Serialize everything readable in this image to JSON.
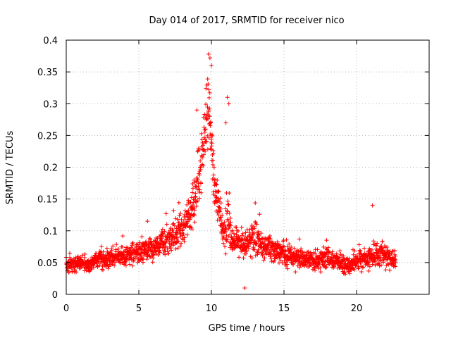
{
  "chart_data": {
    "type": "scatter",
    "title": "Day 014 of 2017, SRMTID for receiver nico",
    "xlabel": "GPS time / hours",
    "ylabel": "SRMTID / TECUs",
    "xlim": [
      0,
      25
    ],
    "ylim": [
      0,
      0.4
    ],
    "x_ticks": [
      0,
      5,
      10,
      15,
      20
    ],
    "x_tick_labels": [
      "0",
      "5",
      "10",
      "15",
      "20"
    ],
    "y_ticks": [
      0,
      0.05,
      0.1,
      0.15,
      0.2,
      0.25,
      0.3,
      0.35,
      0.4
    ],
    "y_tick_labels": [
      "0",
      "0.05",
      "0.1",
      "0.15",
      "0.2",
      "0.25",
      "0.3",
      "0.35",
      "0.4"
    ],
    "grid": true,
    "marker": "+",
    "color": "#ff0000",
    "series": [
      {
        "name": "SRMTID",
        "note_profile": "Envelope of the plotted cloud (approximate central value / max spread) used to regenerate the dense point cloud",
        "x": [
          0,
          0.5,
          1,
          1.5,
          2,
          2.5,
          3,
          3.5,
          4,
          4.5,
          5,
          5.5,
          6,
          6.5,
          7,
          7.5,
          8,
          8.3,
          8.6,
          8.9,
          9.2,
          9.5,
          9.7,
          9.8,
          9.9,
          10.1,
          10.3,
          10.6,
          10.9,
          11.1,
          11.4,
          11.8,
          12.3,
          12.8,
          13.3,
          13.8,
          14.3,
          14.8,
          15.3,
          15.8,
          16.3,
          16.8,
          17.3,
          17.8,
          18.3,
          18.8,
          19.3,
          19.8,
          20.3,
          20.8,
          21.3,
          21.8,
          22.3,
          22.7
        ],
        "center": [
          0.048,
          0.047,
          0.05,
          0.046,
          0.052,
          0.056,
          0.055,
          0.058,
          0.06,
          0.062,
          0.066,
          0.07,
          0.072,
          0.078,
          0.085,
          0.092,
          0.1,
          0.11,
          0.13,
          0.16,
          0.19,
          0.23,
          0.27,
          0.3,
          0.26,
          0.2,
          0.16,
          0.12,
          0.1,
          0.12,
          0.09,
          0.08,
          0.075,
          0.085,
          0.08,
          0.075,
          0.07,
          0.065,
          0.06,
          0.058,
          0.055,
          0.055,
          0.05,
          0.06,
          0.055,
          0.05,
          0.045,
          0.05,
          0.055,
          0.058,
          0.06,
          0.065,
          0.06,
          0.05
        ],
        "spread": [
          0.02,
          0.02,
          0.02,
          0.02,
          0.022,
          0.025,
          0.025,
          0.025,
          0.025,
          0.028,
          0.03,
          0.03,
          0.035,
          0.035,
          0.04,
          0.04,
          0.045,
          0.05,
          0.06,
          0.07,
          0.08,
          0.08,
          0.09,
          0.08,
          0.08,
          0.07,
          0.06,
          0.05,
          0.05,
          0.09,
          0.04,
          0.035,
          0.04,
          0.045,
          0.04,
          0.035,
          0.035,
          0.03,
          0.03,
          0.028,
          0.025,
          0.025,
          0.025,
          0.03,
          0.025,
          0.025,
          0.025,
          0.025,
          0.03,
          0.03,
          0.03,
          0.035,
          0.03,
          0.025
        ]
      }
    ],
    "notable_points": [
      {
        "x": 9.8,
        "y": 0.378
      },
      {
        "x": 9.9,
        "y": 0.372
      },
      {
        "x": 10.0,
        "y": 0.36
      },
      {
        "x": 11.1,
        "y": 0.31
      },
      {
        "x": 11.2,
        "y": 0.3
      },
      {
        "x": 9.0,
        "y": 0.29
      },
      {
        "x": 11.0,
        "y": 0.27
      },
      {
        "x": 12.3,
        "y": 0.01
      },
      {
        "x": 21.1,
        "y": 0.14
      }
    ],
    "point_count": 2000
  }
}
